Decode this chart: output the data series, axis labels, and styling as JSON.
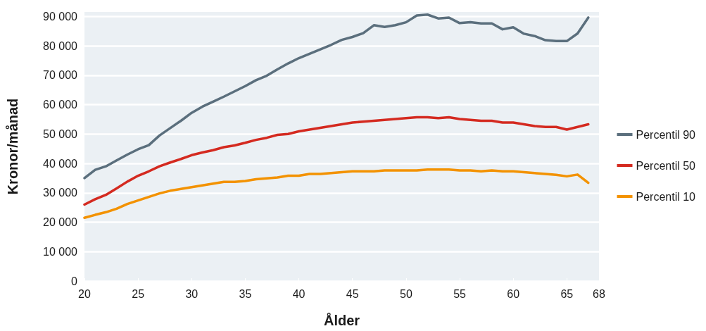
{
  "chart_data": {
    "type": "line",
    "xlabel": "Ålder",
    "ylabel": "Kronor/månad",
    "x": [
      20,
      21,
      22,
      23,
      24,
      25,
      26,
      27,
      28,
      29,
      30,
      31,
      32,
      33,
      34,
      35,
      36,
      37,
      38,
      39,
      40,
      41,
      42,
      43,
      44,
      45,
      46,
      47,
      48,
      49,
      50,
      51,
      52,
      53,
      54,
      55,
      56,
      57,
      58,
      59,
      60,
      61,
      62,
      63,
      64,
      65,
      66,
      67
    ],
    "xlim": [
      20,
      68
    ],
    "xticks": [
      20,
      25,
      30,
      35,
      40,
      45,
      50,
      55,
      60,
      65,
      68
    ],
    "ylim": [
      0,
      91500
    ],
    "yticks": [
      0,
      {
        "value": 10000,
        "label": "10 000"
      },
      {
        "value": 20000,
        "label": "20 000"
      },
      {
        "value": 30000,
        "label": "30 000"
      },
      {
        "value": 40000,
        "label": "40 000"
      },
      {
        "value": 50000,
        "label": "50 000"
      },
      {
        "value": 60000,
        "label": "60 000"
      },
      {
        "value": 70000,
        "label": "70 000"
      },
      {
        "value": 80000,
        "label": "80 000"
      },
      {
        "value": 90000,
        "label": "90 000"
      }
    ],
    "grid": "y",
    "legend": "right",
    "marker": "none",
    "line_style": "solid",
    "series": [
      {
        "name": "Percentil 90",
        "color": "#5b6f7d",
        "values": [
          35000,
          37800,
          39000,
          41000,
          43000,
          44800,
          46200,
          49500,
          52000,
          54500,
          57200,
          59300,
          61000,
          62700,
          64500,
          66300,
          68300,
          69800,
          72000,
          74000,
          75800,
          77300,
          78800,
          80300,
          82000,
          83000,
          84300,
          87000,
          86400,
          87000,
          88000,
          90300,
          90600,
          89300,
          89600,
          87700,
          88000,
          87600,
          87600,
          85600,
          86300,
          84100,
          83300,
          81900,
          81600,
          81600,
          84200,
          89600
        ]
      },
      {
        "name": "Percentil 50",
        "color": "#d42a20",
        "values": [
          26000,
          27800,
          29300,
          31500,
          33800,
          35800,
          37300,
          39000,
          40300,
          41500,
          42800,
          43700,
          44500,
          45500,
          46100,
          47000,
          48000,
          48700,
          49700,
          50000,
          50900,
          51500,
          52100,
          52700,
          53300,
          53900,
          54200,
          54500,
          54800,
          55100,
          55400,
          55700,
          55700,
          55400,
          55700,
          55100,
          54800,
          54500,
          54500,
          53900,
          53900,
          53300,
          52700,
          52400,
          52400,
          51500,
          52400,
          53300
        ]
      },
      {
        "name": "Percentil 10",
        "color": "#f39200",
        "values": [
          21500,
          22500,
          23400,
          24600,
          26200,
          27400,
          28600,
          29800,
          30700,
          31300,
          31900,
          32500,
          33100,
          33700,
          33700,
          34000,
          34600,
          34900,
          35200,
          35800,
          35800,
          36400,
          36400,
          36700,
          37000,
          37300,
          37300,
          37300,
          37600,
          37600,
          37600,
          37600,
          37900,
          37900,
          37900,
          37600,
          37600,
          37300,
          37600,
          37300,
          37300,
          37000,
          36700,
          36400,
          36100,
          35600,
          36200,
          33400
        ]
      }
    ]
  }
}
